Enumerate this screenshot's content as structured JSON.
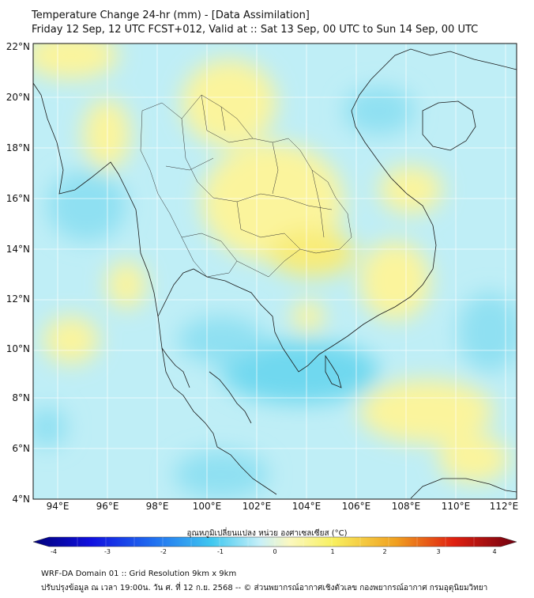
{
  "header": {
    "title": "Temperature Change 24-hr (mm) - [Data Assimilation]",
    "subtitle": "Friday 12 Sep, 12 UTC FCST+012, Valid at :: Sat 13 Sep, 00 UTC to Sun 14 Sep, 00 UTC"
  },
  "map": {
    "lat_labels": [
      "22°N",
      "20°N",
      "18°N",
      "16°N",
      "14°N",
      "12°N",
      "10°N",
      "8°N",
      "6°N",
      "4°N"
    ],
    "lon_labels": [
      "94°E",
      "96°E",
      "98°E",
      "100°E",
      "102°E",
      "104°E",
      "106°E",
      "108°E",
      "110°E",
      "112°E"
    ],
    "lat_range": [
      4,
      22
    ],
    "lon_range": [
      93,
      112.5
    ],
    "background_color": "#bfeef6",
    "warm_color": "#fbf49c",
    "cool_color": "#6fd8ef"
  },
  "colorbar": {
    "title": "อุณหภูมิเปลี่ยนแปลง หน่วย องศาเซลเซียส (°C)",
    "ticks": [
      "-4",
      "-3",
      "-2",
      "-1",
      "0",
      "1",
      "2",
      "3",
      "4"
    ],
    "range": [
      -4,
      4
    ]
  },
  "footer": {
    "line1": "WRF-DA Domain 01 :: Grid Resolution 9km x 9km",
    "line2": "ปรับปรุงข้อมูล ณ เวลา 19:00น. วัน ศ. ที่ 12 ก.ย. 2568 -- © ส่วนพยากรณ์อากาศเชิงตัวเลข กองพยากรณ์อากาศ กรมอุตุนิยมวิทยา"
  }
}
